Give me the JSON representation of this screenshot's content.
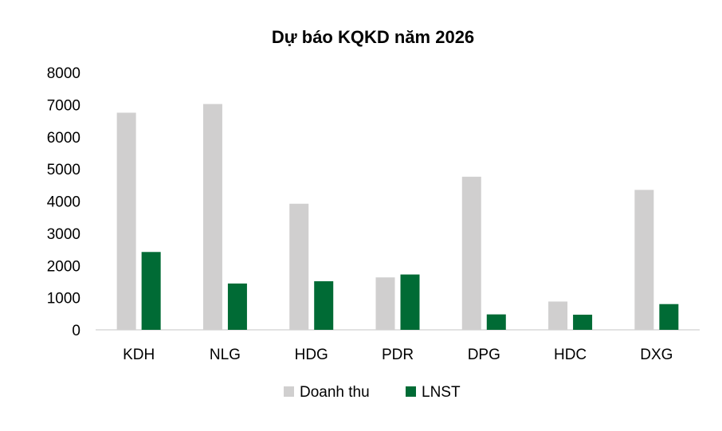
{
  "chart_data": {
    "type": "bar",
    "title": "Dự báo KQKD năm 2026",
    "xlabel": "",
    "ylabel": "",
    "categories": [
      "KDH",
      "NLG",
      "HDG",
      "PDR",
      "DPG",
      "HDC",
      "DXG"
    ],
    "series": [
      {
        "name": "Doanh thu",
        "color": "#d0cfcf",
        "values": [
          6750,
          7020,
          3920,
          1630,
          4760,
          880,
          4350
        ]
      },
      {
        "name": "LNST",
        "color": "#006b35",
        "values": [
          2420,
          1440,
          1510,
          1720,
          480,
          470,
          800
        ]
      }
    ],
    "ylim": [
      0,
      8000
    ],
    "yticks": [
      "0",
      "1000",
      "2000",
      "3000",
      "4000",
      "5000",
      "6000",
      "7000",
      "8000"
    ],
    "grid": false,
    "legend_position": "bottom"
  }
}
